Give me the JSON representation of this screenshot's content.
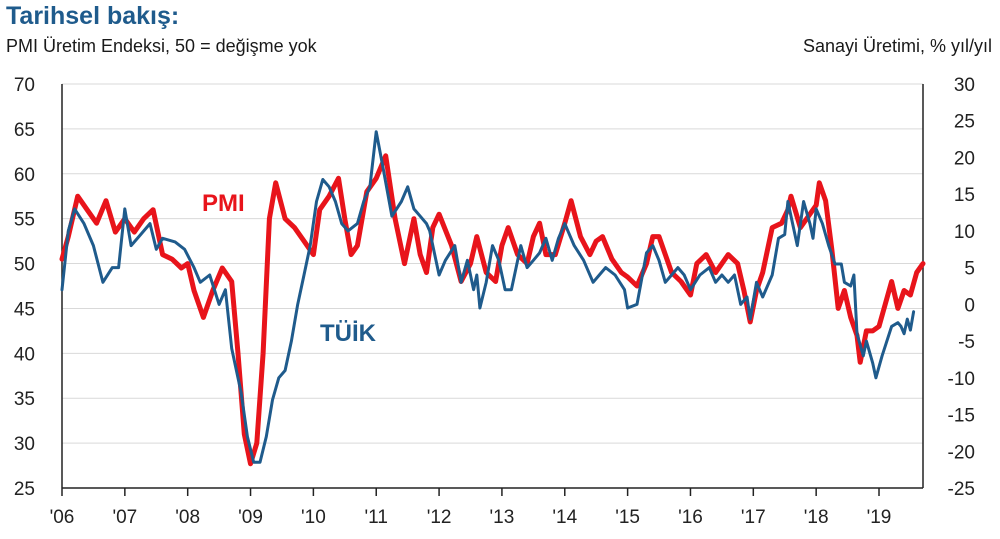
{
  "header": {
    "title": "Tarihsel bakış:",
    "left_axis_caption": "PMI Üretim Endeksi, 50 = değişme yok",
    "right_axis_caption": "Sanayi Üretimi, % yıl/yıl"
  },
  "chart_data": {
    "type": "line",
    "title": "Tarihsel bakış:",
    "grid": true,
    "x_tick_labels": [
      "'06",
      "'07",
      "'08",
      "'09",
      "'10",
      "'11",
      "'12",
      "'13",
      "'14",
      "'15",
      "'16",
      "'17",
      "'18",
      "'19"
    ],
    "x_start": 2006.0,
    "x_end": 2019.7,
    "y_left": {
      "label": "PMI Üretim Endeksi, 50 = değişme yok",
      "ylim": [
        25,
        70
      ],
      "ticks": [
        25,
        30,
        35,
        40,
        45,
        50,
        55,
        60,
        65,
        70
      ]
    },
    "y_right": {
      "label": "Sanayi Üretimi, % yıl/yıl",
      "ylim": [
        -25,
        30
      ],
      "ticks": [
        -25,
        -20,
        -15,
        -10,
        -5,
        0,
        5,
        10,
        15,
        20,
        25,
        30
      ]
    },
    "series": [
      {
        "name": "PMI",
        "axis": "left",
        "color": "#e8141b",
        "label_color": "#e8141b",
        "points": [
          [
            2006.0,
            50.5
          ],
          [
            2006.1,
            53
          ],
          [
            2006.25,
            57.5
          ],
          [
            2006.4,
            56
          ],
          [
            2006.55,
            54.5
          ],
          [
            2006.7,
            57
          ],
          [
            2006.85,
            53.5
          ],
          [
            2007.0,
            55
          ],
          [
            2007.15,
            53.5
          ],
          [
            2007.3,
            55
          ],
          [
            2007.45,
            56
          ],
          [
            2007.6,
            51
          ],
          [
            2007.75,
            50.5
          ],
          [
            2007.9,
            49.5
          ],
          [
            2008.0,
            50
          ],
          [
            2008.1,
            47
          ],
          [
            2008.25,
            44
          ],
          [
            2008.4,
            47
          ],
          [
            2008.55,
            49.5
          ],
          [
            2008.7,
            48
          ],
          [
            2008.8,
            40
          ],
          [
            2008.9,
            31
          ],
          [
            2009.0,
            27.7
          ],
          [
            2009.1,
            30
          ],
          [
            2009.2,
            40
          ],
          [
            2009.3,
            55
          ],
          [
            2009.4,
            59
          ],
          [
            2009.55,
            55
          ],
          [
            2009.7,
            54
          ],
          [
            2009.85,
            52.5
          ],
          [
            2010.0,
            51
          ],
          [
            2010.1,
            56
          ],
          [
            2010.25,
            57.5
          ],
          [
            2010.4,
            59.5
          ],
          [
            2010.5,
            55
          ],
          [
            2010.6,
            51
          ],
          [
            2010.7,
            52
          ],
          [
            2010.85,
            58
          ],
          [
            2011.0,
            59.5
          ],
          [
            2011.15,
            62
          ],
          [
            2011.3,
            55
          ],
          [
            2011.45,
            50
          ],
          [
            2011.6,
            55
          ],
          [
            2011.7,
            51
          ],
          [
            2011.8,
            49
          ],
          [
            2011.9,
            54
          ],
          [
            2012.0,
            55.5
          ],
          [
            2012.2,
            52
          ],
          [
            2012.35,
            48
          ],
          [
            2012.5,
            50
          ],
          [
            2012.6,
            53
          ],
          [
            2012.75,
            49
          ],
          [
            2012.9,
            48
          ],
          [
            2013.0,
            52
          ],
          [
            2013.1,
            54
          ],
          [
            2013.25,
            51
          ],
          [
            2013.4,
            50
          ],
          [
            2013.5,
            53
          ],
          [
            2013.6,
            54.5
          ],
          [
            2013.7,
            51
          ],
          [
            2013.85,
            51
          ],
          [
            2014.0,
            54.5
          ],
          [
            2014.1,
            57
          ],
          [
            2014.25,
            53
          ],
          [
            2014.4,
            51
          ],
          [
            2014.5,
            52.5
          ],
          [
            2014.6,
            53
          ],
          [
            2014.75,
            50.5
          ],
          [
            2014.9,
            49
          ],
          [
            2015.0,
            48.5
          ],
          [
            2015.15,
            47.5
          ],
          [
            2015.3,
            50
          ],
          [
            2015.4,
            53
          ],
          [
            2015.5,
            53
          ],
          [
            2015.6,
            51
          ],
          [
            2015.7,
            49
          ],
          [
            2015.85,
            48
          ],
          [
            2016.0,
            46.5
          ],
          [
            2016.1,
            50
          ],
          [
            2016.25,
            51
          ],
          [
            2016.4,
            49
          ],
          [
            2016.5,
            50
          ],
          [
            2016.6,
            51
          ],
          [
            2016.75,
            50
          ],
          [
            2016.85,
            47
          ],
          [
            2016.95,
            43.5
          ],
          [
            2017.05,
            47
          ],
          [
            2017.15,
            49
          ],
          [
            2017.3,
            54
          ],
          [
            2017.45,
            54.5
          ],
          [
            2017.55,
            56
          ],
          [
            2017.6,
            57.5
          ],
          [
            2017.75,
            54
          ],
          [
            2017.85,
            55
          ],
          [
            2018.0,
            56.5
          ],
          [
            2018.05,
            59
          ],
          [
            2018.15,
            57
          ],
          [
            2018.25,
            51.5
          ],
          [
            2018.35,
            45
          ],
          [
            2018.45,
            47
          ],
          [
            2018.55,
            44
          ],
          [
            2018.65,
            42
          ],
          [
            2018.7,
            39
          ],
          [
            2018.8,
            42.5
          ],
          [
            2018.9,
            42.5
          ],
          [
            2019.0,
            43
          ],
          [
            2019.1,
            45.5
          ],
          [
            2019.2,
            48
          ],
          [
            2019.3,
            45
          ],
          [
            2019.4,
            47
          ],
          [
            2019.5,
            46.5
          ],
          [
            2019.6,
            49
          ],
          [
            2019.7,
            50
          ]
        ]
      },
      {
        "name": "TÜİK",
        "axis": "right",
        "color": "#1f5b8c",
        "label_color": "#1f5b8c",
        "points": [
          [
            2006.0,
            2
          ],
          [
            2006.1,
            10
          ],
          [
            2006.2,
            13
          ],
          [
            2006.35,
            11
          ],
          [
            2006.5,
            8
          ],
          [
            2006.65,
            3
          ],
          [
            2006.8,
            5
          ],
          [
            2006.9,
            5
          ],
          [
            2007.0,
            13
          ],
          [
            2007.1,
            8
          ],
          [
            2007.25,
            9.5
          ],
          [
            2007.4,
            11
          ],
          [
            2007.5,
            7.5
          ],
          [
            2007.6,
            9
          ],
          [
            2007.8,
            8.5
          ],
          [
            2007.95,
            7.5
          ],
          [
            2008.1,
            5
          ],
          [
            2008.2,
            3
          ],
          [
            2008.35,
            4
          ],
          [
            2008.5,
            0
          ],
          [
            2008.6,
            2
          ],
          [
            2008.7,
            -6
          ],
          [
            2008.85,
            -12
          ],
          [
            2008.95,
            -18
          ],
          [
            2009.05,
            -21.5
          ],
          [
            2009.15,
            -21.5
          ],
          [
            2009.25,
            -18
          ],
          [
            2009.35,
            -13
          ],
          [
            2009.45,
            -10
          ],
          [
            2009.55,
            -9
          ],
          [
            2009.65,
            -5
          ],
          [
            2009.75,
            0
          ],
          [
            2009.85,
            4
          ],
          [
            2009.95,
            8
          ],
          [
            2010.05,
            14
          ],
          [
            2010.15,
            17
          ],
          [
            2010.25,
            16
          ],
          [
            2010.35,
            14
          ],
          [
            2010.45,
            11
          ],
          [
            2010.55,
            10
          ],
          [
            2010.7,
            11
          ],
          [
            2010.8,
            14
          ],
          [
            2010.9,
            16
          ],
          [
            2011.0,
            23.5
          ],
          [
            2011.1,
            19
          ],
          [
            2011.25,
            12
          ],
          [
            2011.4,
            14
          ],
          [
            2011.5,
            16
          ],
          [
            2011.6,
            13
          ],
          [
            2011.7,
            12
          ],
          [
            2011.8,
            11
          ],
          [
            2011.85,
            10
          ],
          [
            2011.9,
            8
          ],
          [
            2012.0,
            4
          ],
          [
            2012.1,
            6
          ],
          [
            2012.25,
            8
          ],
          [
            2012.35,
            3
          ],
          [
            2012.45,
            6
          ],
          [
            2012.55,
            2
          ],
          [
            2012.6,
            4
          ],
          [
            2012.65,
            -0.5
          ],
          [
            2012.75,
            3
          ],
          [
            2012.85,
            8
          ],
          [
            2012.95,
            6
          ],
          [
            2013.05,
            2
          ],
          [
            2013.15,
            2
          ],
          [
            2013.3,
            8
          ],
          [
            2013.4,
            5
          ],
          [
            2013.5,
            6
          ],
          [
            2013.6,
            7
          ],
          [
            2013.7,
            9
          ],
          [
            2013.8,
            6
          ],
          [
            2013.9,
            9
          ],
          [
            2014.0,
            11
          ],
          [
            2014.05,
            10
          ],
          [
            2014.15,
            8
          ],
          [
            2014.3,
            6
          ],
          [
            2014.45,
            3
          ],
          [
            2014.55,
            4
          ],
          [
            2014.65,
            5
          ],
          [
            2014.8,
            4
          ],
          [
            2014.95,
            2
          ],
          [
            2015.0,
            -0.5
          ],
          [
            2015.15,
            0
          ],
          [
            2015.3,
            7
          ],
          [
            2015.4,
            8
          ],
          [
            2015.5,
            6
          ],
          [
            2015.6,
            3
          ],
          [
            2015.7,
            4
          ],
          [
            2015.8,
            5
          ],
          [
            2015.9,
            4
          ],
          [
            2016.0,
            2
          ],
          [
            2016.15,
            4
          ],
          [
            2016.3,
            5
          ],
          [
            2016.4,
            3
          ],
          [
            2016.5,
            4
          ],
          [
            2016.6,
            3
          ],
          [
            2016.7,
            4
          ],
          [
            2016.8,
            0
          ],
          [
            2016.9,
            1
          ],
          [
            2016.95,
            -2
          ],
          [
            2017.05,
            3
          ],
          [
            2017.15,
            1
          ],
          [
            2017.3,
            4
          ],
          [
            2017.4,
            9
          ],
          [
            2017.5,
            9.5
          ],
          [
            2017.55,
            14
          ],
          [
            2017.6,
            12
          ],
          [
            2017.7,
            8
          ],
          [
            2017.8,
            14
          ],
          [
            2017.9,
            11
          ],
          [
            2017.95,
            9
          ],
          [
            2018.0,
            13
          ],
          [
            2018.1,
            11
          ],
          [
            2018.2,
            8
          ],
          [
            2018.3,
            5.5
          ],
          [
            2018.4,
            5.5
          ],
          [
            2018.45,
            3
          ],
          [
            2018.55,
            2.5
          ],
          [
            2018.6,
            4
          ],
          [
            2018.65,
            -4
          ],
          [
            2018.75,
            -7
          ],
          [
            2018.8,
            -5
          ],
          [
            2018.9,
            -8
          ],
          [
            2018.95,
            -10
          ],
          [
            2019.05,
            -7
          ],
          [
            2019.2,
            -3
          ],
          [
            2019.3,
            -2.5
          ],
          [
            2019.35,
            -3
          ],
          [
            2019.4,
            -4
          ],
          [
            2019.45,
            -2
          ],
          [
            2019.5,
            -3.5
          ],
          [
            2019.55,
            -1
          ]
        ]
      }
    ],
    "series_labels": [
      {
        "text": "PMI",
        "series": "PMI"
      },
      {
        "text": "TÜİK",
        "series": "TÜİK"
      }
    ]
  }
}
